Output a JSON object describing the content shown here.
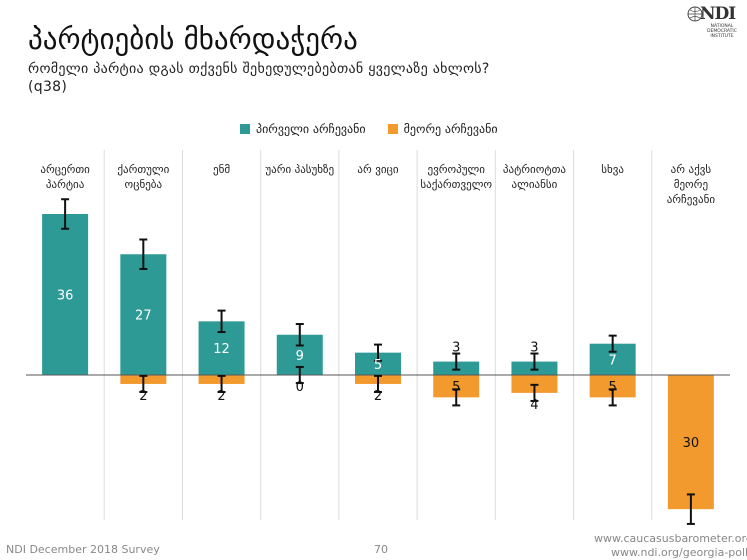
{
  "header": {
    "title": "პარტიების მხარდაჭერა",
    "subtitle": "რომელი პარტია დგას თქვენს შეხედულებებთან ყველაზე ახლოს?",
    "question_code": "(q38)"
  },
  "logo": {
    "name": "NDI",
    "tagline": "NATIONAL DEMOCRATIC INSTITUTE"
  },
  "legend": [
    {
      "label": "პირველი არჩევანი",
      "color": "#2e9a96"
    },
    {
      "label": "მეორე არჩევანი",
      "color": "#f29a2e"
    }
  ],
  "chart_data": {
    "type": "bar",
    "categories": [
      "არცერთი პარტია",
      "ქართული ოცნება",
      "ენმ",
      "უარი პასუხზე",
      "არ ვიცი",
      "ევროპული საქართველო",
      "პატრიოტთა ალიანსი",
      "სხვა",
      "არ აქვს მეორე არჩევანი"
    ],
    "series": [
      {
        "name": "პირველი არჩევანი",
        "color": "#2e9a96",
        "values": [
          36,
          27,
          12,
          9,
          5,
          3,
          3,
          7,
          null
        ]
      },
      {
        "name": "მეორე არჩევანი",
        "color": "#f29a2e",
        "values": [
          null,
          2,
          2,
          0,
          2,
          5,
          4,
          5,
          30
        ]
      }
    ],
    "value_labels": {
      "first": [
        "36",
        "27",
        "12",
        "9",
        "5",
        "3",
        "3",
        "7",
        ""
      ],
      "second": [
        "",
        "2",
        "2",
        "0",
        "2",
        "5",
        "4",
        "5",
        "30"
      ]
    },
    "second_plotted_below_axis": true,
    "error_bars": true,
    "grid": false
  },
  "footer": {
    "source": "NDI December 2018 Survey",
    "page": "70",
    "url1": "www.caucasusbarometer.org",
    "url2": "www.ndi.org/georgia-polls"
  }
}
